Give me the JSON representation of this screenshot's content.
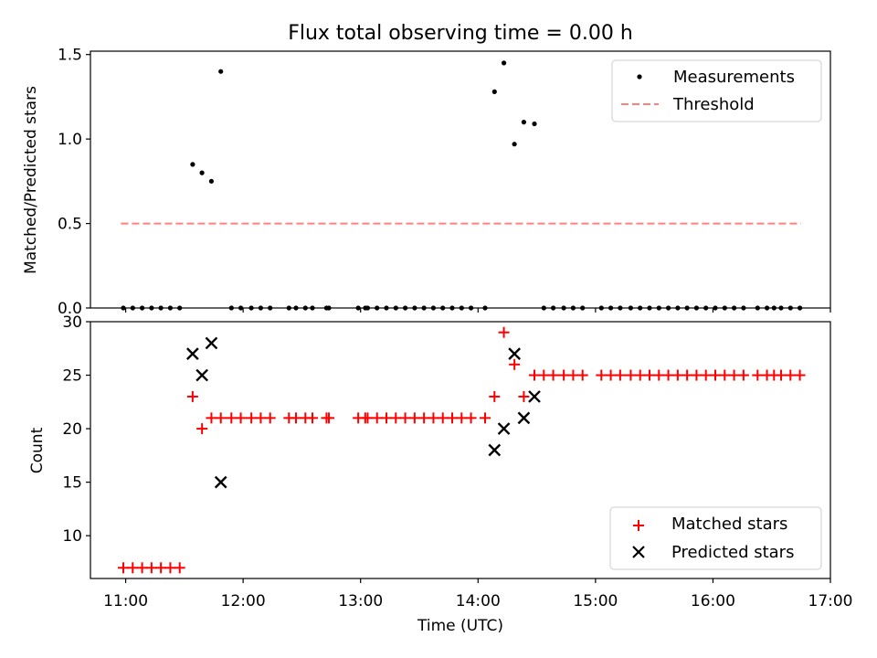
{
  "figure": {
    "title": "Flux total observing time = 0.00 h"
  },
  "chart_data": [
    {
      "type": "scatter",
      "ylabel": "Matched/Predicted stars",
      "xlabel": "",
      "ylim": [
        0,
        1.52
      ],
      "yticks": [
        0.0,
        0.5,
        1.0,
        1.5
      ],
      "ytick_labels": [
        "0.0",
        "0.5",
        "1.0",
        "1.5"
      ],
      "legend_position": "upper right",
      "legend": [
        {
          "label": "Measurements",
          "marker": "dot",
          "color": "#000000"
        },
        {
          "label": "Threshold",
          "marker": "dashed-line",
          "color": "#ff7f7f"
        }
      ],
      "threshold": {
        "y": 0.5,
        "x_start": 10.96,
        "x_end": 16.75
      },
      "x": [
        10.98,
        11.06,
        11.14,
        11.22,
        11.3,
        11.38,
        11.46,
        11.57,
        11.65,
        11.73,
        11.81,
        11.9,
        11.98,
        12.07,
        12.15,
        12.23,
        12.39,
        12.45,
        12.53,
        12.59,
        12.71,
        12.73,
        12.98,
        13.04,
        13.06,
        13.14,
        13.22,
        13.3,
        13.38,
        13.46,
        13.54,
        13.62,
        13.7,
        13.78,
        13.86,
        13.94,
        14.06,
        14.14,
        14.22,
        14.31,
        14.39,
        14.48,
        14.56,
        14.64,
        14.73,
        14.81,
        14.89,
        15.05,
        15.13,
        15.21,
        15.3,
        15.38,
        15.46,
        15.54,
        15.62,
        15.7,
        15.78,
        15.86,
        15.94,
        16.02,
        16.1,
        16.18,
        16.26,
        16.38,
        16.46,
        16.52,
        16.58,
        16.66,
        16.74
      ],
      "y": [
        0,
        0,
        0,
        0,
        0,
        0,
        0,
        0.85,
        0.8,
        0.75,
        1.4,
        0,
        0,
        0,
        0,
        0,
        0,
        0,
        0,
        0,
        0,
        0,
        0,
        0,
        0,
        0,
        0,
        0,
        0,
        0,
        0,
        0,
        0,
        0,
        0,
        0,
        0,
        1.28,
        1.45,
        0.97,
        1.1,
        1.09,
        0,
        0,
        0,
        0,
        0,
        0,
        0,
        0,
        0,
        0,
        0,
        0,
        0,
        0,
        0,
        0,
        0,
        0,
        0,
        0,
        0,
        0,
        0,
        0,
        0,
        0,
        0
      ]
    },
    {
      "type": "scatter",
      "ylabel": "Count",
      "xlabel": "Time (UTC)",
      "xlim": [
        10.7,
        17.0
      ],
      "ylim": [
        6,
        30
      ],
      "yticks": [
        10,
        15,
        20,
        25,
        30
      ],
      "ytick_labels": [
        "10",
        "15",
        "20",
        "25",
        "30"
      ],
      "xticks": [
        11,
        12,
        13,
        14,
        15,
        16,
        17
      ],
      "xtick_labels": [
        "11:00",
        "12:00",
        "13:00",
        "14:00",
        "15:00",
        "16:00",
        "17:00"
      ],
      "legend_position": "lower right",
      "series": [
        {
          "name": "Matched stars",
          "marker": "plus",
          "color": "#ff0000",
          "x": [
            10.98,
            11.06,
            11.14,
            11.22,
            11.3,
            11.38,
            11.46,
            11.57,
            11.65,
            11.73,
            11.81,
            11.9,
            11.98,
            12.07,
            12.15,
            12.23,
            12.39,
            12.45,
            12.53,
            12.59,
            12.71,
            12.73,
            12.98,
            13.04,
            13.06,
            13.14,
            13.22,
            13.3,
            13.38,
            13.46,
            13.54,
            13.62,
            13.7,
            13.78,
            13.86,
            13.94,
            14.06,
            14.14,
            14.22,
            14.31,
            14.39,
            14.48,
            14.56,
            14.64,
            14.73,
            14.81,
            14.89,
            15.05,
            15.13,
            15.21,
            15.3,
            15.38,
            15.46,
            15.54,
            15.62,
            15.7,
            15.78,
            15.86,
            15.94,
            16.02,
            16.1,
            16.18,
            16.26,
            16.38,
            16.46,
            16.52,
            16.58,
            16.66,
            16.74
          ],
          "y": [
            7,
            7,
            7,
            7,
            7,
            7,
            7,
            23,
            20,
            21,
            21,
            21,
            21,
            21,
            21,
            21,
            21,
            21,
            21,
            21,
            21,
            21,
            21,
            21,
            21,
            21,
            21,
            21,
            21,
            21,
            21,
            21,
            21,
            21,
            21,
            21,
            21,
            23,
            29,
            26,
            23,
            25,
            25,
            25,
            25,
            25,
            25,
            25,
            25,
            25,
            25,
            25,
            25,
            25,
            25,
            25,
            25,
            25,
            25,
            25,
            25,
            25,
            25,
            25,
            25,
            25,
            25,
            25,
            25
          ]
        },
        {
          "name": "Predicted stars",
          "marker": "x",
          "color": "#000000",
          "x": [
            11.57,
            11.65,
            11.73,
            11.81,
            14.14,
            14.22,
            14.31,
            14.39,
            14.48
          ],
          "y": [
            27,
            25,
            28,
            15,
            18,
            20,
            27,
            21,
            23
          ]
        }
      ]
    }
  ]
}
